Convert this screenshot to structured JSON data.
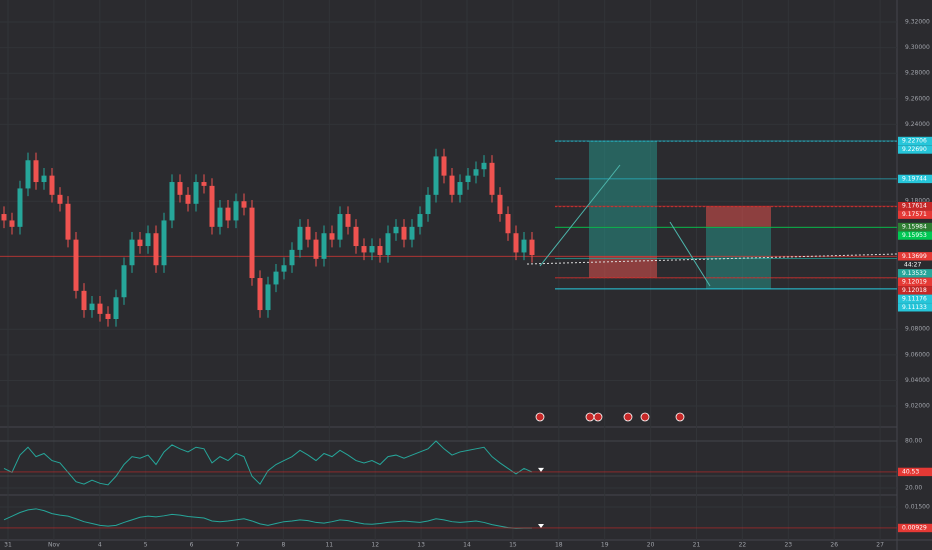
{
  "chart_data": {
    "type": "candlestick",
    "up_color": "#26a69a",
    "down_color": "#ef5350",
    "open": [
      9.17,
      9.165,
      9.16,
      9.19,
      9.212,
      9.195,
      9.2,
      9.185,
      9.178,
      9.15,
      9.11,
      9.095,
      9.1,
      9.092,
      9.088,
      9.105,
      9.13,
      9.15,
      9.145,
      9.155,
      9.13,
      9.165,
      9.195,
      9.185,
      9.178,
      9.195,
      9.192,
      9.16,
      9.175,
      9.165,
      9.18,
      9.175,
      9.12,
      9.095,
      9.115,
      9.125,
      9.13,
      9.142,
      9.16,
      9.15,
      9.135,
      9.155,
      9.15,
      9.17,
      9.16,
      9.145,
      9.14,
      9.145,
      9.138,
      9.155,
      9.16,
      9.15,
      9.16,
      9.17,
      9.185,
      9.215,
      9.2,
      9.185,
      9.195,
      9.2,
      9.205,
      9.21,
      9.185,
      9.17,
      9.155,
      9.14,
      9.15
    ],
    "high": [
      9.176,
      9.171,
      9.196,
      9.218,
      9.218,
      9.206,
      9.206,
      9.191,
      9.184,
      9.156,
      9.116,
      9.106,
      9.106,
      9.098,
      9.111,
      9.136,
      9.156,
      9.156,
      9.161,
      9.161,
      9.171,
      9.201,
      9.201,
      9.191,
      9.201,
      9.201,
      9.198,
      9.181,
      9.181,
      9.186,
      9.186,
      9.181,
      9.126,
      9.121,
      9.131,
      9.136,
      9.148,
      9.166,
      9.166,
      9.156,
      9.161,
      9.161,
      9.176,
      9.176,
      9.166,
      9.151,
      9.151,
      9.151,
      9.161,
      9.166,
      9.166,
      9.166,
      9.176,
      9.191,
      9.221,
      9.221,
      9.206,
      9.201,
      9.206,
      9.211,
      9.216,
      9.216,
      9.191,
      9.176,
      9.161,
      9.156,
      9.156
    ],
    "low": [
      9.159,
      9.154,
      9.154,
      9.184,
      9.189,
      9.189,
      9.179,
      9.172,
      9.144,
      9.104,
      9.089,
      9.089,
      9.086,
      9.082,
      9.082,
      9.099,
      9.124,
      9.139,
      9.139,
      9.124,
      9.124,
      9.159,
      9.179,
      9.172,
      9.172,
      9.186,
      9.154,
      9.154,
      9.159,
      9.159,
      9.169,
      9.114,
      9.089,
      9.089,
      9.109,
      9.119,
      9.124,
      9.136,
      9.144,
      9.129,
      9.129,
      9.144,
      9.144,
      9.154,
      9.139,
      9.134,
      9.134,
      9.132,
      9.132,
      9.149,
      9.144,
      9.144,
      9.154,
      9.164,
      9.179,
      9.194,
      9.179,
      9.179,
      9.189,
      9.194,
      9.199,
      9.179,
      9.164,
      9.149,
      9.134,
      9.134,
      9.132
    ],
    "close": [
      9.165,
      9.16,
      9.19,
      9.212,
      9.195,
      9.2,
      9.185,
      9.178,
      9.15,
      9.11,
      9.095,
      9.1,
      9.092,
      9.088,
      9.105,
      9.13,
      9.15,
      9.145,
      9.155,
      9.13,
      9.165,
      9.195,
      9.185,
      9.178,
      9.195,
      9.192,
      9.16,
      9.175,
      9.165,
      9.18,
      9.175,
      9.12,
      9.095,
      9.115,
      9.125,
      9.13,
      9.142,
      9.16,
      9.15,
      9.135,
      9.155,
      9.15,
      9.17,
      9.16,
      9.145,
      9.14,
      9.145,
      9.138,
      9.155,
      9.16,
      9.15,
      9.16,
      9.17,
      9.185,
      9.215,
      9.2,
      9.185,
      9.195,
      9.2,
      9.205,
      9.21,
      9.185,
      9.17,
      9.155,
      9.14,
      9.15,
      9.138
    ],
    "ylim": [
      9.0052,
      9.3372
    ],
    "yticks": [
      {
        "value": 9.32,
        "label": "9.32000"
      },
      {
        "value": 9.3,
        "label": "9.30000"
      },
      {
        "value": 9.28,
        "label": "9.28000"
      },
      {
        "value": 9.26,
        "label": "9.26000"
      },
      {
        "value": 9.24,
        "label": "9.24000"
      },
      {
        "value": 9.18,
        "label": "9.18000"
      },
      {
        "value": 9.08,
        "label": "9.08000"
      },
      {
        "value": 9.06,
        "label": "9.06000"
      },
      {
        "value": 9.04,
        "label": "9.04000"
      },
      {
        "value": 9.02,
        "label": "9.02000"
      }
    ],
    "categories": [
      "31",
      "Nov",
      "4",
      "5",
      "6",
      "7",
      "8",
      "11",
      "12",
      "13",
      "14",
      "15",
      "18",
      "19",
      "20",
      "21",
      "22",
      "23",
      "26",
      "27"
    ],
    "price_labels": [
      {
        "value": 9.22706,
        "label": "9.22706",
        "color": "#26c6da"
      },
      {
        "value": 9.2269,
        "label": "9.22690",
        "color": "#26c6da"
      },
      {
        "value": 9.19744,
        "label": "9.19744",
        "color": "#26c6da"
      },
      {
        "value": 9.17614,
        "label": "9.17614",
        "color": "#c62828"
      },
      {
        "value": 9.17571,
        "label": "9.17571",
        "color": "#e53935"
      },
      {
        "value": 9.15984,
        "label": "9.15984",
        "color": "#2e7d32"
      },
      {
        "value": 9.15953,
        "label": "9.15953",
        "color": "#00c853"
      },
      {
        "value": 9.13699,
        "label": "9.13699",
        "color": "#e53935"
      },
      {
        "value": 9.13532,
        "label": "9.13532",
        "color": "#26a69a"
      },
      {
        "value": 9.12019,
        "label": "9.12019",
        "color": "#e53935"
      },
      {
        "value": 9.12018,
        "label": "9.12018",
        "color": "#c62828"
      },
      {
        "value": 9.11176,
        "label": "9.11176",
        "color": "#26c6da"
      },
      {
        "value": 9.11133,
        "label": "9.11133",
        "color": "#26c6da"
      }
    ],
    "countdown": "44:27",
    "positions": [
      {
        "entry": 9.13699,
        "target": 9.22706,
        "stop": 9.12019
      },
      {
        "entry": 9.15984,
        "target": 9.11133,
        "stop": 9.17614
      }
    ],
    "rsi": {
      "values": [
        45,
        40,
        62,
        72,
        60,
        64,
        55,
        52,
        40,
        28,
        25,
        30,
        26,
        24,
        35,
        50,
        60,
        58,
        62,
        50,
        66,
        75,
        70,
        66,
        72,
        70,
        52,
        60,
        55,
        64,
        60,
        35,
        25,
        42,
        50,
        55,
        60,
        68,
        62,
        55,
        64,
        60,
        68,
        62,
        55,
        52,
        55,
        50,
        60,
        62,
        58,
        62,
        66,
        70,
        80,
        70,
        62,
        66,
        68,
        70,
        72,
        60,
        52,
        45,
        38,
        45,
        40.53
      ],
      "color": "#26a69a",
      "ylim": [
        11.1,
        97.8
      ],
      "yticks": [
        {
          "value": 80,
          "label": "80.00"
        },
        {
          "value": 20,
          "label": "20.00"
        }
      ],
      "last": 40.53
    },
    "osc": {
      "values": [
        0.0115,
        0.0125,
        0.0135,
        0.0142,
        0.0145,
        0.014,
        0.0132,
        0.0128,
        0.0125,
        0.0118,
        0.011,
        0.0105,
        0.01,
        0.0098,
        0.01,
        0.0108,
        0.0115,
        0.0122,
        0.0125,
        0.0123,
        0.0126,
        0.013,
        0.0128,
        0.0124,
        0.0122,
        0.012,
        0.0112,
        0.011,
        0.0112,
        0.0115,
        0.0118,
        0.0112,
        0.0104,
        0.01,
        0.0105,
        0.011,
        0.0112,
        0.0115,
        0.0113,
        0.0108,
        0.0106,
        0.011,
        0.0115,
        0.0113,
        0.0108,
        0.0104,
        0.0103,
        0.0105,
        0.0108,
        0.011,
        0.0112,
        0.011,
        0.0108,
        0.0112,
        0.0118,
        0.0115,
        0.011,
        0.0108,
        0.011,
        0.0112,
        0.0108,
        0.0102,
        0.0098,
        0.0094,
        0.0092,
        0.0093,
        0.00929
      ],
      "color": "#26a69a",
      "ylim": [
        0.00602,
        0.01826
      ],
      "yticks": [
        {
          "value": 0.015,
          "label": "0.01500"
        }
      ],
      "last": 0.00929
    }
  }
}
